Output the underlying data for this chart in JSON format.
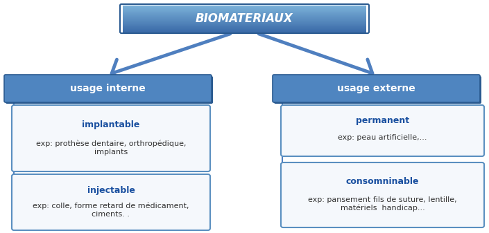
{
  "bg_color": "#ffffff",
  "blue_light": "#7aadd4",
  "blue_mid": "#5b8fc0",
  "blue_dark": "#3a6ea0",
  "blue_grad_top": "#a8c4e0",
  "blue_grad_bot": "#4a7db8",
  "box_white_fill": "#f5f8fc",
  "box_white_stroke": "#5a8fc0",
  "arrow_color": "#4f7fbf",
  "title_text": "BIOMATERIAUX",
  "usage_interne": "usage interne",
  "usage_externe": "usage externe",
  "impl_title": "implantable",
  "impl_body": "exp: prothèse dentaire, orthropédique,\nimplants",
  "inj_title": "injectable",
  "inj_body": "exp: colle, forme retard de médicament,\nciments. .",
  "perm_title": "permanent",
  "perm_body": "exp: peau artificielle,...",
  "cons_title": "consomninable",
  "cons_body": "exp: pansement fils de suture, lentille,\nmatériels  handicap...",
  "text_blue": "#1a50a0",
  "text_body": "#333333",
  "text_white": "#ffffff"
}
